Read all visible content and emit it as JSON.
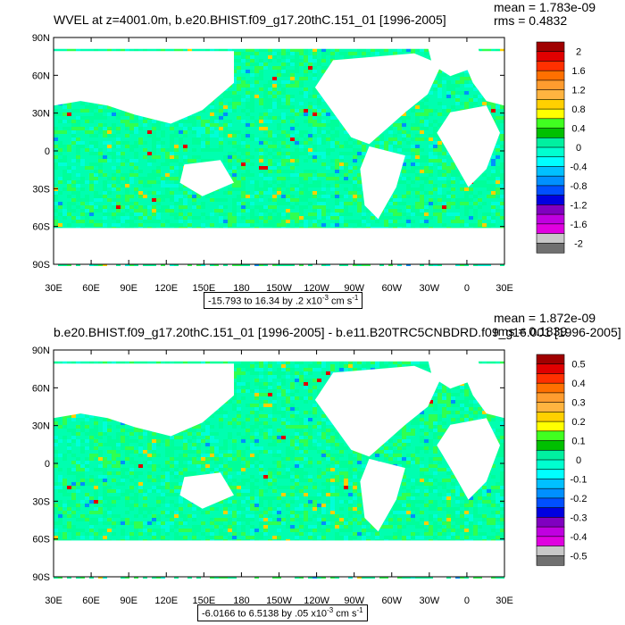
{
  "panels": [
    {
      "title": "WVEL at z=4001.0m, b.e20.BHIST.f09_g17.20thC.151_01 [1996-2005]",
      "mean": "mean = 1.783e-09",
      "rms": "rms = 0.4832",
      "range_text": "-15.793 to 16.34 by .2 x10",
      "range_exp": "-3",
      "range_unit": " cm s",
      "range_unit_exp": "-1",
      "colorbar_labels": [
        "2",
        "1.6",
        "1.2",
        "0.8",
        "0.4",
        "0",
        "-0.4",
        "-0.8",
        "-1.2",
        "-1.6",
        "-2"
      ]
    },
    {
      "title": "b.e20.BHIST.f09_g17.20thC.151_01 [1996-2005] - b.e11.B20TRC5CNBDRD.f09_g16.001 [1996-2005]",
      "mean": "mean = 1.872e-09",
      "rms": "rms = 0.1839",
      "range_text": "-6.0166 to 6.5138 by .05 x10",
      "range_exp": "-3",
      "range_unit": " cm s",
      "range_unit_exp": "-1",
      "colorbar_labels": [
        "0.5",
        "0.4",
        "0.3",
        "0.2",
        "0.1",
        "0",
        "-0.1",
        "-0.2",
        "-0.3",
        "-0.4",
        "-0.5"
      ]
    }
  ],
  "lat_labels": [
    "90N",
    "60N",
    "30N",
    "0",
    "30S",
    "60S",
    "90S"
  ],
  "lon_labels": [
    "30E",
    "60E",
    "90E",
    "120E",
    "150E",
    "180",
    "150W",
    "120W",
    "90W",
    "60W",
    "30W",
    "0",
    "30E"
  ],
  "colors": [
    "#a00000",
    "#e00000",
    "#ff3000",
    "#ff7000",
    "#ff9c2f",
    "#ffb440",
    "#ffd000",
    "#ffff00",
    "#40ff20",
    "#00c000",
    "#00f0a0",
    "#00ffd0",
    "#00ffff",
    "#00c0ff",
    "#0090ff",
    "#0050ff",
    "#0000e0",
    "#8000c0",
    "#c000e0",
    "#e000e0",
    "#c8c8c8",
    "#707070"
  ]
}
